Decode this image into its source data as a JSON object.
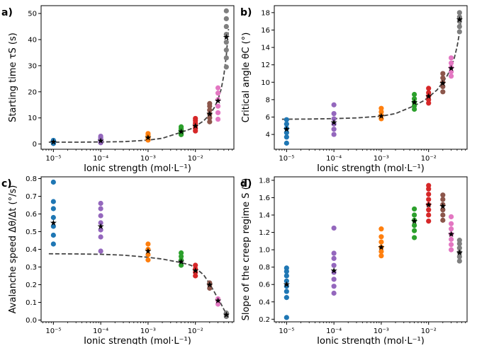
{
  "colors": {
    "1e-5": "#1f77b4",
    "1e-4": "#9467bd",
    "1e-3": "#ff7f0e",
    "5e-3": "#2ca02c",
    "1e-2": "#d62728",
    "2e-2": "#8c564b",
    "3e-2": "#e377c2",
    "4.5e-2": "#7f7f7f",
    "fit": "#444444",
    "mean": "#000000"
  },
  "chart_data": [
    {
      "type": "scatter",
      "panel_label": "a)",
      "xlabel": "Ionic strength (mol·L⁻¹)",
      "ylabel": "Starting time τS (s)",
      "xscale": "log",
      "xlim": [
        5.5e-06,
        0.065
      ],
      "ylim": [
        -2,
        53
      ],
      "yticks": [
        0,
        10,
        20,
        30,
        40,
        50
      ],
      "xticks": [
        "10⁻⁵",
        "10⁻⁴",
        "10⁻³",
        "10⁻²"
      ],
      "series": [
        {
          "x": 1e-05,
          "values": [
            0.2,
            0.5,
            0.8,
            1.1,
            1.4
          ],
          "mean": 0.8
        },
        {
          "x": 0.0001,
          "values": [
            0.5,
            1.0,
            1.5,
            2.0,
            2.5,
            3.0
          ],
          "mean": 1.3
        },
        {
          "x": 0.001,
          "values": [
            1.5,
            2.2,
            2.8,
            3.4,
            4.0
          ],
          "mean": 2.5
        },
        {
          "x": 0.005,
          "values": [
            3.6,
            4.2,
            4.8,
            5.4,
            6.0,
            6.6
          ],
          "mean": 4.8
        },
        {
          "x": 0.01,
          "values": [
            5.0,
            6.0,
            7.0,
            8.0,
            9.0,
            9.8
          ],
          "mean": 7.0
        },
        {
          "x": 0.02,
          "values": [
            8.5,
            10.0,
            11.5,
            13.0,
            14.5,
            15.5
          ],
          "mean": 11.5
        },
        {
          "x": 0.03,
          "values": [
            9.5,
            12,
            14.5,
            17,
            19.5,
            21.5
          ],
          "mean": 16.5
        },
        {
          "x": 0.045,
          "values": [
            29.5,
            33,
            36,
            39,
            42,
            45,
            48,
            51
          ],
          "mean": 41
        }
      ],
      "fit": {
        "x": [
          8e-06,
          3e-05,
          0.0001,
          0.0003,
          0.001,
          0.002,
          0.005,
          0.008,
          0.01,
          0.015,
          0.02,
          0.025,
          0.03,
          0.035,
          0.04,
          0.045,
          0.05
        ],
        "y": [
          0.7,
          0.7,
          0.8,
          0.9,
          1.5,
          2.2,
          4.5,
          5.8,
          6.8,
          8.9,
          11.3,
          13.9,
          17.0,
          21.0,
          26.5,
          34.0,
          44.0
        ]
      }
    },
    {
      "type": "scatter",
      "panel_label": "b)",
      "xlabel": "Ionic strength (mol·L⁻¹)",
      "ylabel": "Critical angle θC (°)",
      "xscale": "log",
      "xlim": [
        5.5e-06,
        0.065
      ],
      "ylim": [
        2.3,
        18.8
      ],
      "yticks": [
        4,
        6,
        8,
        10,
        12,
        14,
        16,
        18
      ],
      "xticks": [
        "10⁻⁵",
        "10⁻⁴",
        "10⁻³",
        "10⁻²"
      ],
      "series": [
        {
          "x": 1e-05,
          "values": [
            3.0,
            3.7,
            4.2,
            4.7,
            5.2,
            5.7
          ],
          "mean": 4.6
        },
        {
          "x": 0.0001,
          "values": [
            4.0,
            4.6,
            5.2,
            5.8,
            6.4,
            7.4
          ],
          "mean": 5.4
        },
        {
          "x": 0.001,
          "values": [
            5.8,
            6.2,
            6.6,
            7.0
          ],
          "mean": 6.1
        },
        {
          "x": 0.005,
          "values": [
            6.9,
            7.3,
            7.7,
            8.1,
            8.6
          ],
          "mean": 7.7
        },
        {
          "x": 0.01,
          "values": [
            7.6,
            8.0,
            8.4,
            8.8,
            9.3
          ],
          "mean": 8.4
        },
        {
          "x": 0.02,
          "values": [
            8.9,
            9.5,
            10.0,
            10.5,
            11.0
          ],
          "mean": 9.9
        },
        {
          "x": 0.03,
          "values": [
            10.7,
            11.2,
            11.7,
            12.2,
            12.8
          ],
          "mean": 11.6
        },
        {
          "x": 0.045,
          "values": [
            15.8,
            16.4,
            17.0,
            17.5,
            18.0
          ],
          "mean": 17.2
        }
      ],
      "fit": {
        "x": [
          8e-06,
          3e-05,
          0.0001,
          0.0003,
          0.001,
          0.002,
          0.005,
          0.008,
          0.01,
          0.015,
          0.02,
          0.025,
          0.03,
          0.035,
          0.04,
          0.045,
          0.05
        ],
        "y": [
          5.75,
          5.77,
          5.82,
          5.9,
          6.1,
          6.4,
          7.3,
          7.9,
          8.3,
          9.1,
          10.0,
          10.8,
          11.7,
          12.8,
          14.1,
          15.7,
          17.6
        ]
      }
    },
    {
      "type": "scatter",
      "panel_label": "c)",
      "xlabel": "Ionic strength (mol·L⁻¹)",
      "ylabel": "Avalanche speed Δθ/Δt (°/s)",
      "xscale": "log",
      "xlim": [
        5.5e-06,
        0.065
      ],
      "ylim": [
        -0.01,
        0.81
      ],
      "yticks": [
        0.0,
        0.1,
        0.2,
        0.3,
        0.4,
        0.5,
        0.6,
        0.7,
        0.8
      ],
      "xticks": [
        "10⁻⁵",
        "10⁻⁴",
        "10⁻³",
        "10⁻²"
      ],
      "series": [
        {
          "x": 1e-05,
          "values": [
            0.43,
            0.48,
            0.53,
            0.58,
            0.63,
            0.67,
            0.78
          ],
          "mean": 0.55
        },
        {
          "x": 0.0001,
          "values": [
            0.39,
            0.47,
            0.51,
            0.55,
            0.59,
            0.63,
            0.66
          ],
          "mean": 0.53
        },
        {
          "x": 0.001,
          "values": [
            0.34,
            0.37,
            0.4,
            0.43
          ],
          "mean": 0.39
        },
        {
          "x": 0.005,
          "values": [
            0.31,
            0.34,
            0.36,
            0.38
          ],
          "mean": 0.33
        },
        {
          "x": 0.01,
          "values": [
            0.25,
            0.27,
            0.29,
            0.31
          ],
          "mean": 0.28
        },
        {
          "x": 0.02,
          "values": [
            0.18,
            0.2,
            0.21
          ],
          "mean": 0.2
        },
        {
          "x": 0.03,
          "values": [
            0.09,
            0.11,
            0.12
          ],
          "mean": 0.11
        },
        {
          "x": 0.045,
          "values": [
            0.02,
            0.03,
            0.04
          ],
          "mean": 0.03
        }
      ],
      "fit": {
        "x": [
          8e-06,
          3e-05,
          0.0001,
          0.0003,
          0.001,
          0.002,
          0.005,
          0.008,
          0.01,
          0.015,
          0.02,
          0.025,
          0.03,
          0.035,
          0.04,
          0.045,
          0.05
        ],
        "y": [
          0.375,
          0.374,
          0.372,
          0.367,
          0.355,
          0.345,
          0.325,
          0.31,
          0.295,
          0.255,
          0.205,
          0.16,
          0.12,
          0.09,
          0.06,
          0.035,
          0.015
        ]
      }
    },
    {
      "type": "scatter",
      "panel_label": "d)",
      "xlabel": "Ionic strength (mol·L⁻¹)",
      "ylabel": "Slope of the creep regime S (°)",
      "xscale": "log",
      "xlim": [
        5.5e-06,
        0.065
      ],
      "ylim": [
        0.17,
        1.84
      ],
      "yticks": [
        0.2,
        0.4,
        0.6,
        0.8,
        1.0,
        1.2,
        1.4,
        1.6,
        1.8
      ],
      "xticks": [
        "10⁻⁵",
        "10⁻⁴",
        "10⁻³",
        "10⁻²"
      ],
      "series": [
        {
          "x": 1e-05,
          "values": [
            0.22,
            0.45,
            0.52,
            0.58,
            0.64,
            0.7,
            0.75,
            0.79
          ],
          "mean": 0.6
        },
        {
          "x": 0.0001,
          "values": [
            0.5,
            0.58,
            0.66,
            0.74,
            0.82,
            0.9,
            0.96,
            1.25
          ],
          "mean": 0.76
        },
        {
          "x": 0.001,
          "values": [
            0.93,
            0.98,
            1.03,
            1.09,
            1.15,
            1.24
          ],
          "mean": 1.03
        },
        {
          "x": 0.005,
          "values": [
            1.14,
            1.22,
            1.28,
            1.34,
            1.4,
            1.47
          ],
          "mean": 1.33
        },
        {
          "x": 0.01,
          "values": [
            1.33,
            1.4,
            1.46,
            1.52,
            1.58,
            1.64,
            1.7,
            1.74
          ],
          "mean": 1.52
        },
        {
          "x": 0.02,
          "values": [
            1.34,
            1.4,
            1.46,
            1.52,
            1.58,
            1.63
          ],
          "mean": 1.5
        },
        {
          "x": 0.03,
          "values": [
            1.0,
            1.06,
            1.12,
            1.18,
            1.24,
            1.3,
            1.38
          ],
          "mean": 1.18
        },
        {
          "x": 0.045,
          "values": [
            0.87,
            0.92,
            0.97,
            1.02,
            1.07,
            1.11
          ],
          "mean": 0.97
        }
      ]
    }
  ]
}
